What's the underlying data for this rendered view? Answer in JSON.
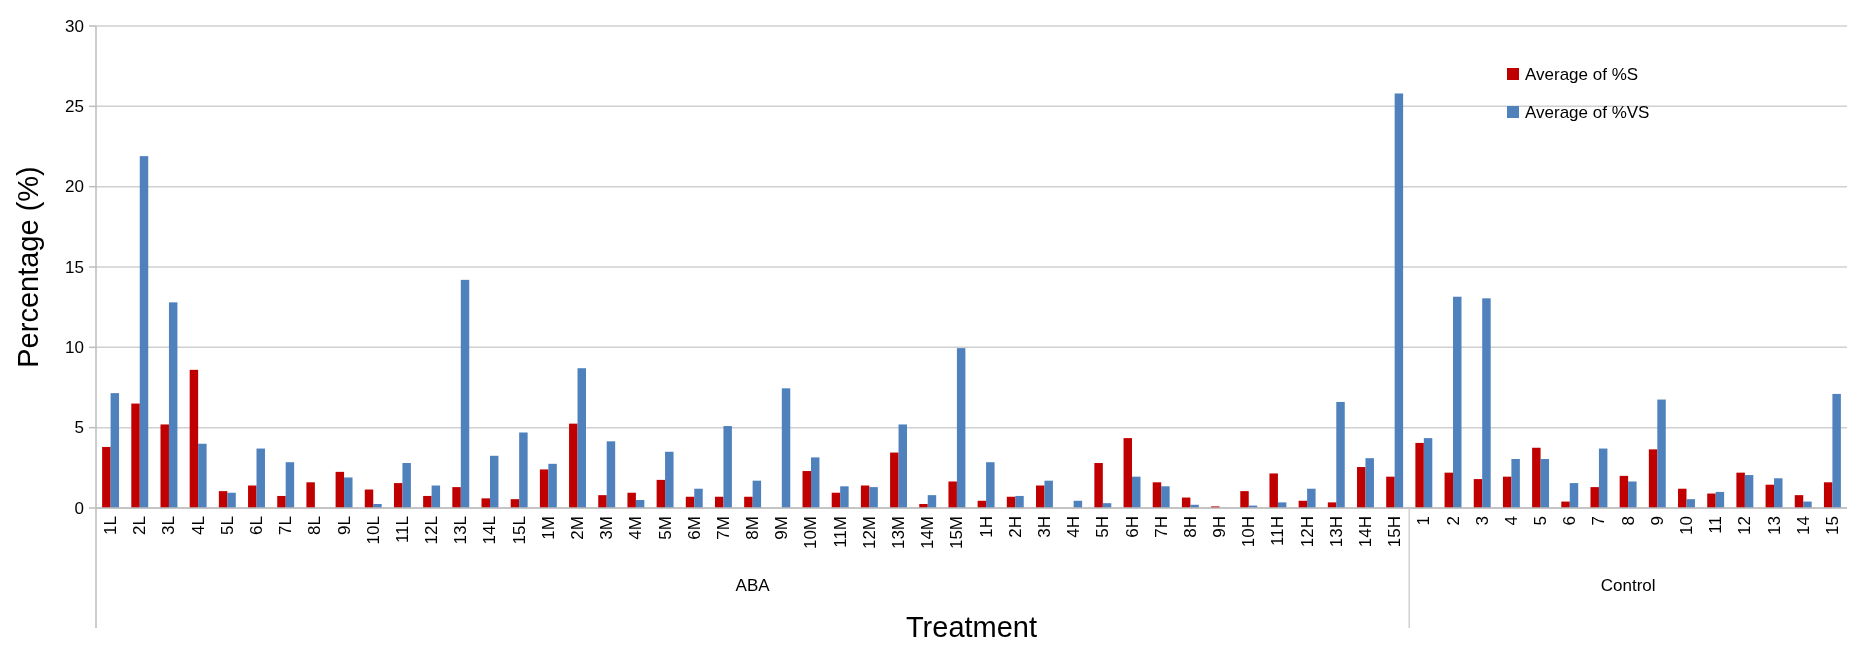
{
  "chart_data": {
    "type": "bar",
    "xlabel": "Treatment",
    "ylabel": "Percentage (%)",
    "categories": [
      "1L",
      "2L",
      "3L",
      "4L",
      "5L",
      "6L",
      "7L",
      "8L",
      "9L",
      "10L",
      "11L",
      "12L",
      "13L",
      "14L",
      "15L",
      "1M",
      "2M",
      "3M",
      "4M",
      "5M",
      "6M",
      "7M",
      "8M",
      "9M",
      "10M",
      "11M",
      "12M",
      "13M",
      "14M",
      "15M",
      "1H",
      "2H",
      "3H",
      "4H",
      "5H",
      "6H",
      "7H",
      "8H",
      "9H",
      "10H",
      "11H",
      "12H",
      "13H",
      "14H",
      "15H",
      "1",
      "2",
      "3",
      "4",
      "5",
      "6",
      "7",
      "8",
      "9",
      "10",
      "11",
      "12",
      "13",
      "14",
      "15"
    ],
    "series": [
      {
        "name": "Average of %S",
        "color": "#c00000",
        "values": [
          3.8,
          6.5,
          5.2,
          8.6,
          1.05,
          1.4,
          0.75,
          1.6,
          2.25,
          1.15,
          1.55,
          0.75,
          1.3,
          0.6,
          0.55,
          2.4,
          5.25,
          0.8,
          0.95,
          1.75,
          0.7,
          0.7,
          0.7,
          0,
          2.3,
          0.95,
          1.4,
          3.45,
          0.25,
          1.65,
          0.45,
          0.7,
          1.4,
          0,
          2.8,
          4.35,
          1.6,
          0.65,
          0.1,
          1.05,
          2.15,
          0.45,
          0.35,
          2.55,
          1.95,
          4.05,
          2.2,
          1.8,
          1.95,
          3.75,
          0.4,
          1.3,
          2.0,
          3.65,
          1.2,
          0.9,
          2.2,
          1.45,
          0.8,
          1.6
        ]
      },
      {
        "name": "Average of %VS",
        "color": "#4f81bd",
        "values": [
          7.15,
          21.9,
          12.8,
          4.0,
          0.95,
          3.7,
          2.85,
          0,
          1.9,
          0.25,
          2.8,
          1.4,
          14.2,
          3.25,
          4.7,
          2.75,
          8.7,
          4.15,
          0.5,
          3.5,
          1.2,
          5.1,
          1.7,
          7.45,
          3.15,
          1.35,
          1.3,
          5.2,
          0.8,
          9.95,
          2.85,
          0.75,
          1.7,
          0.45,
          0.3,
          1.95,
          1.35,
          0.2,
          0,
          0.15,
          0.35,
          1.2,
          6.6,
          3.1,
          25.8,
          4.35,
          13.15,
          13.05,
          3.05,
          3.05,
          1.55,
          3.7,
          1.65,
          6.75,
          0.55,
          1.0,
          2.05,
          1.85,
          0.4,
          7.1
        ]
      }
    ],
    "ylim": [
      0,
      30
    ],
    "yticks": [
      0,
      5,
      10,
      15,
      20,
      25,
      30
    ],
    "grid": "y",
    "legend": "top right",
    "annotations": [
      "ABA",
      "Control"
    ]
  }
}
